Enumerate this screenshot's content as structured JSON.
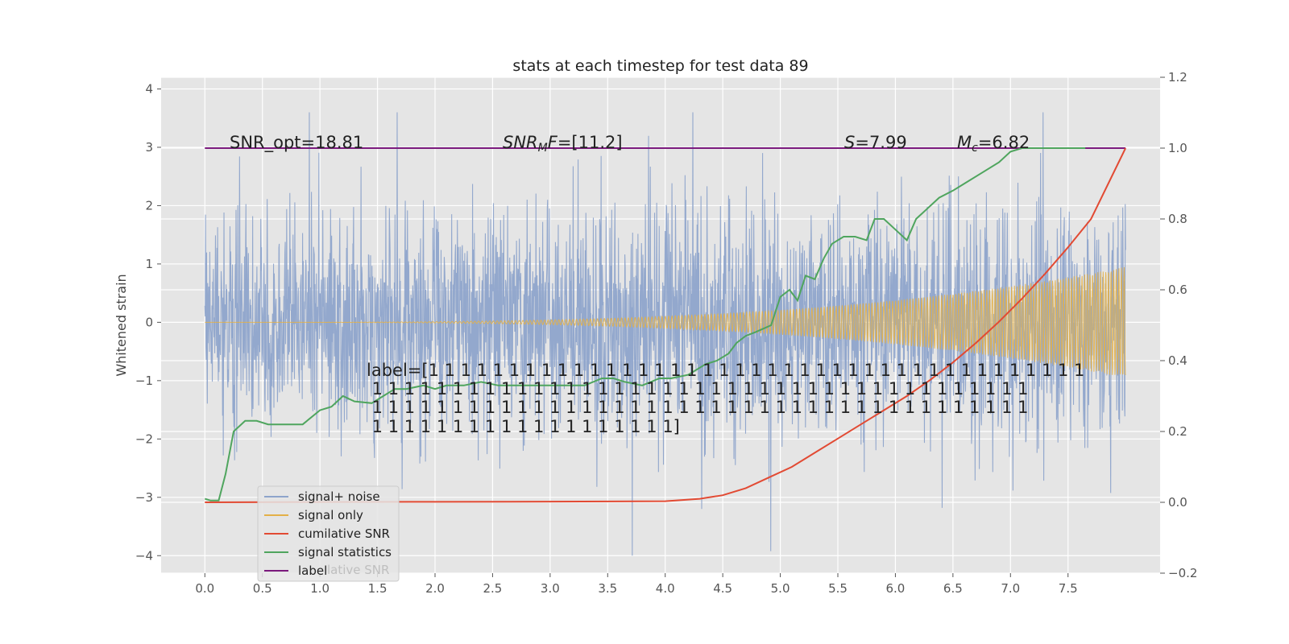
{
  "chart_data": {
    "type": "line",
    "title": "stats at each timestep for test data 89",
    "ylabel": "Whitened strain",
    "xlabel": "",
    "xlim": [
      -0.38,
      8.3
    ],
    "ylim": [
      -4.3,
      4.2
    ],
    "y2lim": [
      -0.2,
      1.2
    ],
    "x_ticks": [
      "0.0",
      "0.5",
      "1.0",
      "1.5",
      "2.0",
      "2.5",
      "3.0",
      "3.5",
      "4.0",
      "4.5",
      "5.0",
      "5.5",
      "6.0",
      "6.5",
      "7.0",
      "7.5"
    ],
    "y_ticks": [
      "4",
      "3",
      "2",
      "1",
      "0",
      "−1",
      "−2",
      "−3",
      "−4"
    ],
    "y2_ticks": [
      "1.2",
      "1.0",
      "0.8",
      "0.6",
      "0.4",
      "0.2",
      "0.0",
      "−0.2"
    ],
    "grid": true,
    "legend_position": "lower-left",
    "colors": {
      "signal_noise": "#8ea4cb",
      "signal_only": "#e3b048",
      "cumulative_snr": "#e24a33",
      "signal_statistics": "#4fa55e",
      "label": "#7b1a7d",
      "plot_bg": "#e5e5e5"
    },
    "series": [
      {
        "name": "signal+ noise",
        "axis": "left",
        "style": "noise",
        "x_range": [
          0,
          8.0
        ],
        "y_range": [
          -4.0,
          3.6
        ]
      },
      {
        "name": "signal only",
        "axis": "left",
        "style": "chirp",
        "x_range": [
          0,
          8.0
        ],
        "end_amplitude": 0.95
      },
      {
        "name": "cumilative SNR",
        "axis": "right",
        "x": [
          0,
          1,
          2,
          3,
          4,
          4.3,
          4.5,
          4.7,
          4.9,
          5.1,
          5.3,
          5.5,
          5.7,
          5.9,
          6.1,
          6.3,
          6.5,
          6.7,
          6.9,
          7.1,
          7.3,
          7.5,
          7.7,
          7.85,
          8.0
        ],
        "y": [
          0,
          0.0008,
          0.0015,
          0.002,
          0.003,
          0.01,
          0.02,
          0.04,
          0.07,
          0.1,
          0.14,
          0.18,
          0.22,
          0.26,
          0.3,
          0.345,
          0.395,
          0.45,
          0.51,
          0.575,
          0.645,
          0.72,
          0.8,
          0.9,
          1.0
        ]
      },
      {
        "name": "signal statistics",
        "axis": "right",
        "x": [
          0,
          0.05,
          0.12,
          0.18,
          0.25,
          0.35,
          0.45,
          0.55,
          0.65,
          0.75,
          0.85,
          1.0,
          1.1,
          1.2,
          1.3,
          1.45,
          1.55,
          1.65,
          1.75,
          1.9,
          2.0,
          2.1,
          2.25,
          2.4,
          2.55,
          2.7,
          2.85,
          3.0,
          3.15,
          3.3,
          3.45,
          3.55,
          3.65,
          3.8,
          3.95,
          4.05,
          4.2,
          4.35,
          4.45,
          4.55,
          4.62,
          4.7,
          4.78,
          4.85,
          4.92,
          5.0,
          5.08,
          5.15,
          5.22,
          5.3,
          5.38,
          5.45,
          5.55,
          5.65,
          5.75,
          5.82,
          5.9,
          6.0,
          6.1,
          6.18,
          6.28,
          6.38,
          6.5,
          6.6,
          6.75,
          6.9,
          7.0,
          7.1,
          7.2,
          7.35,
          7.5,
          7.65
        ],
        "y": [
          0.01,
          0.005,
          0.005,
          0.08,
          0.2,
          0.23,
          0.23,
          0.22,
          0.22,
          0.22,
          0.22,
          0.26,
          0.27,
          0.3,
          0.285,
          0.28,
          0.3,
          0.32,
          0.32,
          0.33,
          0.32,
          0.33,
          0.33,
          0.34,
          0.33,
          0.33,
          0.33,
          0.33,
          0.33,
          0.33,
          0.35,
          0.35,
          0.34,
          0.33,
          0.35,
          0.35,
          0.36,
          0.39,
          0.4,
          0.42,
          0.45,
          0.47,
          0.48,
          0.49,
          0.5,
          0.58,
          0.6,
          0.57,
          0.64,
          0.63,
          0.69,
          0.73,
          0.75,
          0.75,
          0.74,
          0.8,
          0.8,
          0.77,
          0.74,
          0.8,
          0.83,
          0.86,
          0.88,
          0.9,
          0.93,
          0.96,
          0.99,
          1.0,
          1.0,
          1.0,
          1.0,
          1.0
        ]
      },
      {
        "name": "label",
        "axis": "right",
        "x": [
          0,
          8.0
        ],
        "y": [
          1.0,
          1.0
        ]
      }
    ],
    "annotations": {
      "snr_opt": "SNR_opt=18.81",
      "snr_mf": "=[11.2]",
      "s_value": "=7.99",
      "mc_value": "=6.82",
      "label_lines": [
        "label=[1 1 1 1 1 1 1 1 1 1 1 1 1 1 1 1 1 1 1 1 1 1 1 1 1 1 1 1 1 1 1 1 1 1 1 1 1 1 1 1 1",
        " 1 1 1 1 1 1 1 1 1 1 1 1 1 1 1 1 1 1 1 1 1 1 1 1 1 1 1 1 1 1 1 1 1 1 1 1 1 1 1 1 1",
        " 1 1 1 1 1 1 1 1 1 1 1 1 1 1 1 1 1 1 1 1 1 1 1 1 1 1 1 1 1 1 1 1 1 1 1 1 1 1 1 1 1",
        " 1 1 1 1 1 1 1 1 1 1 1 1 1 1 1 1 1 1 1]"
      ]
    }
  },
  "legend_overlap_text": "lative SNR"
}
